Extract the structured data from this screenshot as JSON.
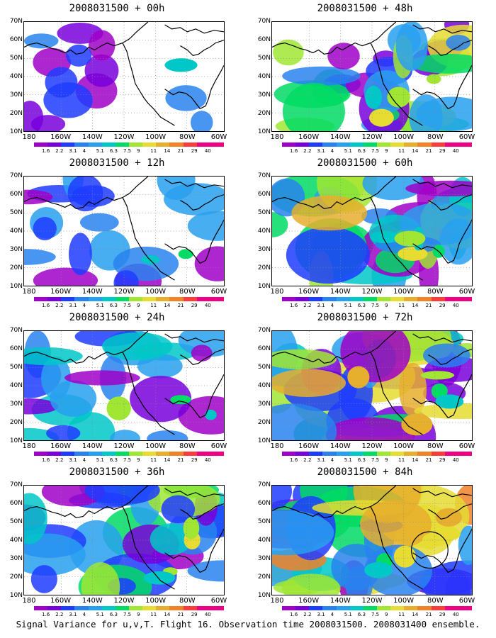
{
  "panels": [
    {
      "title": "2008031500 + 00h",
      "intensity": 0.15
    },
    {
      "title": "2008031500 + 12h",
      "intensity": 0.35
    },
    {
      "title": "2008031500 + 24h",
      "intensity": 0.5
    },
    {
      "title": "2008031500 + 36h",
      "intensity": 0.65
    },
    {
      "title": "2008031500 + 48h",
      "intensity": 0.7
    },
    {
      "title": "2008031500 + 60h",
      "intensity": 0.8
    },
    {
      "title": "2008031500 + 72h",
      "intensity": 0.9
    },
    {
      "title": "2008031500 + 84h",
      "intensity": 1.0
    }
  ],
  "lat_labels": [
    "70N",
    "60N",
    "50N",
    "40N",
    "30N",
    "20N",
    "10N"
  ],
  "lon_labels": [
    "180",
    "160W",
    "140W",
    "120W",
    "100W",
    "80W",
    "60W"
  ],
  "colorbar": {
    "labels": [
      "1.6",
      "2.2",
      "3.1",
      "4",
      "5.1",
      "6.3",
      "7.5",
      "9",
      "11",
      "14",
      "21",
      "29",
      "40"
    ],
    "colors": [
      "#a000c8",
      "#7800dc",
      "#1e3cff",
      "#2882f0",
      "#28a0f0",
      "#00c8c8",
      "#00dc64",
      "#a0e632",
      "#e6dc32",
      "#e6af2d",
      "#f08228",
      "#fa3c3c",
      "#f00082"
    ]
  },
  "caption": "Signal Variance for u,v,T. Flight 16. Observation time 2008031500. 2008031400 ensemble."
}
